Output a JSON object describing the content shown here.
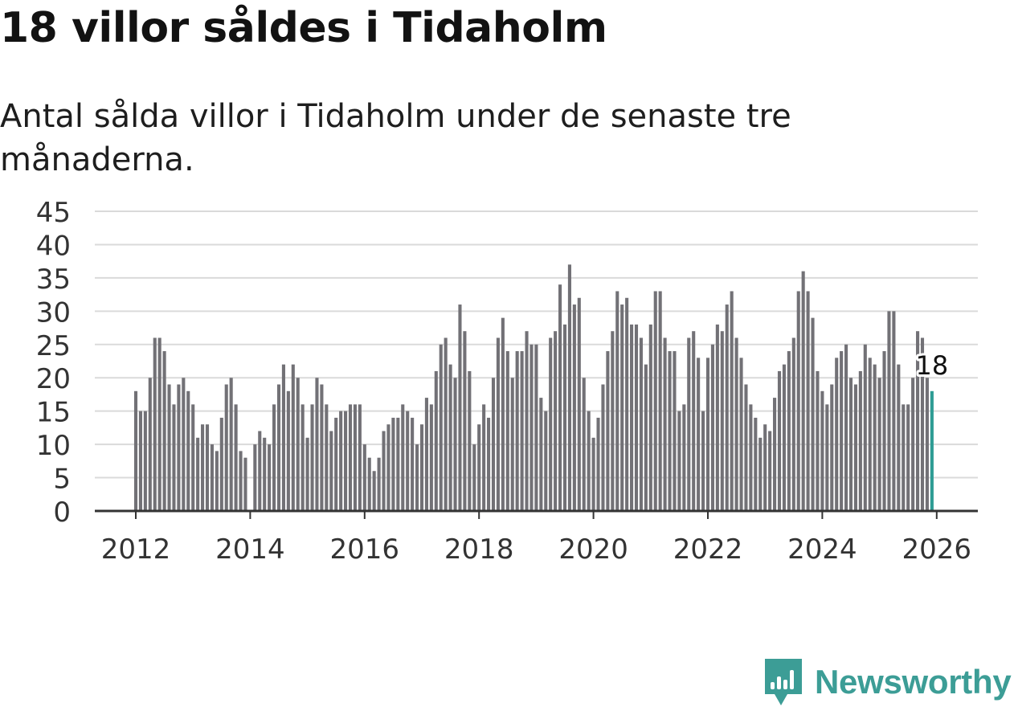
{
  "header": {
    "title": "18 villor såldes i Tidaholm",
    "subtitle": "Antal sålda villor i Tidaholm under de senaste tre månaderna."
  },
  "brand": {
    "name": "Newsworthy",
    "icon": "newsworthy-logo-icon",
    "color": "#3c9d96"
  },
  "colors": {
    "bar": "#727176",
    "highlight": "#2e9c94",
    "grid": "#dadada",
    "axis": "#333333"
  },
  "chart_data": {
    "type": "bar",
    "title": "Antal sålda villor i Tidaholm under de senaste tre månaderna.",
    "xlabel": "",
    "ylabel": "",
    "ylim": [
      0,
      45
    ],
    "yticks": [
      0,
      5,
      10,
      15,
      20,
      25,
      30,
      35,
      40,
      45
    ],
    "xticks": [
      "2012",
      "2014",
      "2016",
      "2018",
      "2020",
      "2022",
      "2024",
      "2026"
    ],
    "start": "2012-01",
    "grid": true,
    "highlight_label": "18",
    "values": [
      18,
      15,
      15,
      20,
      26,
      26,
      24,
      19,
      16,
      19,
      20,
      18,
      16,
      11,
      13,
      13,
      10,
      9,
      14,
      19,
      20,
      16,
      9,
      8,
      0,
      10,
      12,
      11,
      10,
      16,
      19,
      22,
      18,
      22,
      20,
      16,
      11,
      16,
      20,
      19,
      16,
      12,
      14,
      15,
      15,
      16,
      16,
      16,
      10,
      8,
      6,
      8,
      12,
      13,
      14,
      14,
      16,
      15,
      14,
      10,
      13,
      17,
      16,
      21,
      25,
      26,
      22,
      20,
      31,
      27,
      21,
      10,
      13,
      16,
      14,
      20,
      26,
      29,
      24,
      20,
      24,
      24,
      27,
      25,
      25,
      17,
      15,
      26,
      27,
      34,
      28,
      37,
      31,
      32,
      20,
      15,
      11,
      14,
      19,
      24,
      27,
      33,
      31,
      32,
      28,
      28,
      26,
      22,
      28,
      33,
      33,
      26,
      24,
      24,
      15,
      16,
      26,
      27,
      23,
      15,
      23,
      25,
      28,
      27,
      31,
      33,
      26,
      23,
      19,
      16,
      14,
      11,
      13,
      12,
      17,
      21,
      22,
      24,
      26,
      33,
      36,
      33,
      29,
      21,
      18,
      16,
      19,
      23,
      24,
      25,
      20,
      19,
      21,
      25,
      23,
      22,
      20,
      24,
      30,
      30,
      22,
      16,
      16,
      20,
      27,
      26,
      20,
      18
    ]
  }
}
